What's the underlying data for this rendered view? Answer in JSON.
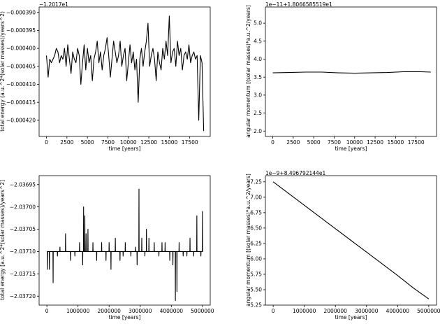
{
  "chart_data": [
    {
      "type": "line",
      "offset_text": "−1.2017e1",
      "xlabel": "time [years]",
      "ylabel": "total energy (a.u.^2*(solar masses)/years^2)",
      "xlim": [
        -900,
        20000
      ],
      "ylim": [
        -0.0004245,
        -0.0003885
      ],
      "xticks": [
        0,
        2500,
        5000,
        7500,
        10000,
        12500,
        15000,
        17500
      ],
      "yticks": [
        -0.00039,
        -0.000395,
        -0.0004,
        -0.000405,
        -0.00041,
        -0.000415,
        -0.00042
      ],
      "ytick_labels": [
        "−0.000390",
        "−0.000395",
        "−0.000400",
        "−0.000405",
        "−0.000410",
        "−0.000415",
        "−0.000420"
      ],
      "x": [
        0,
        200,
        400,
        600,
        800,
        1000,
        1200,
        1400,
        1600,
        1800,
        2000,
        2200,
        2400,
        2600,
        2800,
        3000,
        3200,
        3400,
        3600,
        3800,
        4000,
        4200,
        4400,
        4600,
        4800,
        5000,
        5200,
        5400,
        5600,
        5800,
        6000,
        6200,
        6400,
        6600,
        6800,
        7000,
        7200,
        7400,
        7600,
        7800,
        8000,
        8200,
        8400,
        8600,
        8800,
        9000,
        9200,
        9400,
        9600,
        9800,
        10000,
        10200,
        10400,
        10600,
        10800,
        11000,
        11200,
        11400,
        11600,
        11800,
        12000,
        12200,
        12400,
        12600,
        12800,
        13000,
        13200,
        13400,
        13600,
        13800,
        14000,
        14200,
        14400,
        14600,
        14800,
        15000,
        15200,
        15400,
        15600,
        15800,
        16000,
        16200,
        16400,
        16600,
        16800,
        17000,
        17200,
        17400,
        17600,
        17800,
        18000,
        18200,
        18400,
        18600,
        18800,
        19000,
        19200
      ],
      "y": [
        -0.000402,
        -0.000408,
        -0.000403,
        -0.000404,
        -0.000403,
        -0.000402,
        -0.0004,
        -0.000401,
        -0.000404,
        -0.000402,
        -0.000403,
        -0.0004,
        -0.000405,
        -0.000399,
        -0.000403,
        -0.000407,
        -0.000401,
        -0.000403,
        -0.000404,
        -0.0004,
        -0.000402,
        -0.00041,
        -0.000404,
        -0.000399,
        -0.000406,
        -0.0004,
        -0.000404,
        -0.000402,
        -0.000409,
        -0.000403,
        -0.000401,
        -0.000398,
        -0.000404,
        -0.000401,
        -0.000406,
        -0.000402,
        -0.0004,
        -0.000397,
        -0.000402,
        -0.000408,
        -0.000403,
        -0.000398,
        -0.000401,
        -0.000404,
        -0.000402,
        -0.000398,
        -0.000405,
        -0.000402,
        -0.0004,
        -0.000409,
        -0.000404,
        -0.000399,
        -0.000404,
        -0.000401,
        -0.000406,
        -0.000403,
        -0.000415,
        -0.000403,
        -0.0004,
        -0.000405,
        -0.000401,
        -0.000398,
        -0.000393,
        -0.000405,
        -0.000402,
        -0.0004,
        -0.000403,
        -0.000409,
        -0.000401,
        -0.000404,
        -0.000406,
        -0.0004,
        -0.000403,
        -0.000398,
        -0.000402,
        -0.000391,
        -0.000404,
        -0.000401,
        -0.0004,
        -0.000405,
        -0.000398,
        -0.000402,
        -0.0004,
        -0.000406,
        -0.000402,
        -0.000401,
        -0.000403,
        -0.000399,
        -0.000404,
        -0.000402,
        -0.000401,
        -0.000403,
        -0.000402,
        -0.00042,
        -0.000402,
        -0.000404,
        -0.000423
      ]
    },
    {
      "type": "line",
      "offset_text": "1e−11+1.8066585519e1",
      "xlabel": "time [years]",
      "ylabel": "angular momentum [(solar masses)*a.u.^2/years]",
      "xlim": [
        -900,
        20000
      ],
      "ylim": [
        1.85,
        5.45
      ],
      "xticks": [
        0,
        2500,
        5000,
        7500,
        10000,
        12500,
        15000,
        17500
      ],
      "yticks": [
        2.0,
        2.5,
        3.0,
        3.5,
        4.0,
        4.5,
        5.0
      ],
      "ytick_labels": [
        "2.0",
        "2.5",
        "3.0",
        "3.5",
        "4.0",
        "4.5",
        "5.0"
      ],
      "x": [
        0,
        2000,
        4000,
        6000,
        8000,
        10000,
        12000,
        14000,
        16000,
        18000,
        19300
      ],
      "y": [
        3.62,
        3.63,
        3.64,
        3.64,
        3.62,
        3.61,
        3.62,
        3.63,
        3.65,
        3.65,
        3.64
      ]
    },
    {
      "type": "line",
      "xlabel": "time [years]",
      "ylabel": "total energy [a.u.^2*(solar masses)/years^2]",
      "xlim": [
        -250000,
        5250000
      ],
      "ylim": [
        -2.03722,
        -2.03693
      ],
      "xticks": [
        0,
        1000000,
        2000000,
        3000000,
        4000000,
        5000000
      ],
      "yticks": [
        -2.03695,
        -2.037,
        -2.03705,
        -2.0371,
        -2.03715,
        -2.0372
      ],
      "ytick_labels": [
        "−2.03695",
        "−2.03700",
        "−2.03705",
        "−2.03710",
        "−2.03715",
        "−2.03720"
      ],
      "baseline": -2.0371,
      "spikes": [
        [
          20000,
          -2.03714
        ],
        [
          80000,
          -2.03714
        ],
        [
          200000,
          -2.03717
        ],
        [
          340000,
          -2.03711
        ],
        [
          420000,
          -2.03709
        ],
        [
          600000,
          -2.03706
        ],
        [
          760000,
          -2.03712
        ],
        [
          900000,
          -2.03711
        ],
        [
          1050000,
          -2.03708
        ],
        [
          1150000,
          -2.03713
        ],
        [
          1180000,
          -2.037
        ],
        [
          1220000,
          -2.03702
        ],
        [
          1260000,
          -2.03706
        ],
        [
          1320000,
          -2.03705
        ],
        [
          1480000,
          -2.03708
        ],
        [
          1600000,
          -2.03712
        ],
        [
          1760000,
          -2.03708
        ],
        [
          1900000,
          -2.03712
        ],
        [
          2000000,
          -2.03708
        ],
        [
          2060000,
          -2.03714
        ],
        [
          2200000,
          -2.03707
        ],
        [
          2350000,
          -2.03712
        ],
        [
          2450000,
          -2.03711
        ],
        [
          2520000,
          -2.03708
        ],
        [
          2700000,
          -2.03711
        ],
        [
          2850000,
          -2.03709
        ],
        [
          2900000,
          -2.03713
        ],
        [
          2960000,
          -2.03696
        ],
        [
          3050000,
          -2.03707
        ],
        [
          3150000,
          -2.03711
        ],
        [
          3200000,
          -2.03705
        ],
        [
          3280000,
          -2.03707
        ],
        [
          3450000,
          -2.03708
        ],
        [
          3600000,
          -2.03711
        ],
        [
          3700000,
          -2.03708
        ],
        [
          3800000,
          -2.03708
        ],
        [
          3950000,
          -2.03712
        ],
        [
          4050000,
          -2.03713
        ],
        [
          4130000,
          -2.03721
        ],
        [
          4180000,
          -2.03719
        ],
        [
          4250000,
          -2.03708
        ],
        [
          4380000,
          -2.03711
        ],
        [
          4500000,
          -2.03711
        ],
        [
          4600000,
          -2.03707
        ],
        [
          4720000,
          -2.03711
        ],
        [
          4820000,
          -2.03702
        ],
        [
          4950000,
          -2.03711
        ],
        [
          5000000,
          -2.03701
        ]
      ]
    },
    {
      "type": "line",
      "offset_text": "1e−9+8.496792144e1",
      "xlabel": "time [years]",
      "ylabel": "angular momentum [(solar masses)*a.u.^2/years]",
      "xlim": [
        -250000,
        5250000
      ],
      "ylim": [
        5.25,
        7.35
      ],
      "xticks": [
        0,
        1000000,
        2000000,
        3000000,
        4000000,
        5000000
      ],
      "yticks": [
        5.25,
        5.5,
        5.75,
        6.0,
        6.25,
        6.5,
        6.75,
        7.0,
        7.25
      ],
      "ytick_labels": [
        "5.25",
        "5.50",
        "5.75",
        "6.00",
        "6.25",
        "6.50",
        "6.75",
        "7.00",
        "7.25"
      ],
      "x": [
        0,
        500000,
        1000000,
        1500000,
        2000000,
        2500000,
        3000000,
        3500000,
        4000000,
        4500000,
        5000000
      ],
      "y": [
        7.25,
        7.06,
        6.87,
        6.68,
        6.49,
        6.3,
        6.11,
        5.92,
        5.73,
        5.53,
        5.35
      ]
    }
  ]
}
